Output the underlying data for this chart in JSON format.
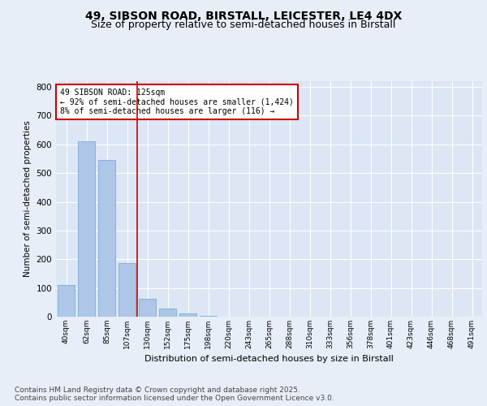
{
  "title1": "49, SIBSON ROAD, BIRSTALL, LEICESTER, LE4 4DX",
  "title2": "Size of property relative to semi-detached houses in Birstall",
  "xlabel": "Distribution of semi-detached houses by size in Birstall",
  "ylabel": "Number of semi-detached properties",
  "categories": [
    "40sqm",
    "62sqm",
    "85sqm",
    "107sqm",
    "130sqm",
    "152sqm",
    "175sqm",
    "198sqm",
    "220sqm",
    "243sqm",
    "265sqm",
    "288sqm",
    "310sqm",
    "333sqm",
    "356sqm",
    "378sqm",
    "401sqm",
    "423sqm",
    "446sqm",
    "468sqm",
    "491sqm"
  ],
  "values": [
    110,
    611,
    546,
    187,
    63,
    28,
    10,
    3,
    0,
    0,
    0,
    0,
    0,
    0,
    0,
    0,
    0,
    0,
    0,
    0,
    0
  ],
  "bar_color": "#aec6e8",
  "bar_edge_color": "#7aadd4",
  "vline_color": "#cc0000",
  "vline_pos": 3.5,
  "annotation_text": "49 SIBSON ROAD: 125sqm\n← 92% of semi-detached houses are smaller (1,424)\n8% of semi-detached houses are larger (116) →",
  "annotation_box_color": "#cc0000",
  "ylim": [
    0,
    820
  ],
  "yticks": [
    0,
    100,
    200,
    300,
    400,
    500,
    600,
    700,
    800
  ],
  "background_color": "#e8eef7",
  "plot_bg_color": "#dce6f5",
  "footer_text": "Contains HM Land Registry data © Crown copyright and database right 2025.\nContains public sector information licensed under the Open Government Licence v3.0.",
  "title_fontsize": 10,
  "subtitle_fontsize": 9,
  "annotation_fontsize": 7,
  "footer_fontsize": 6.5,
  "ylabel_fontsize": 7.5,
  "xlabel_fontsize": 8
}
